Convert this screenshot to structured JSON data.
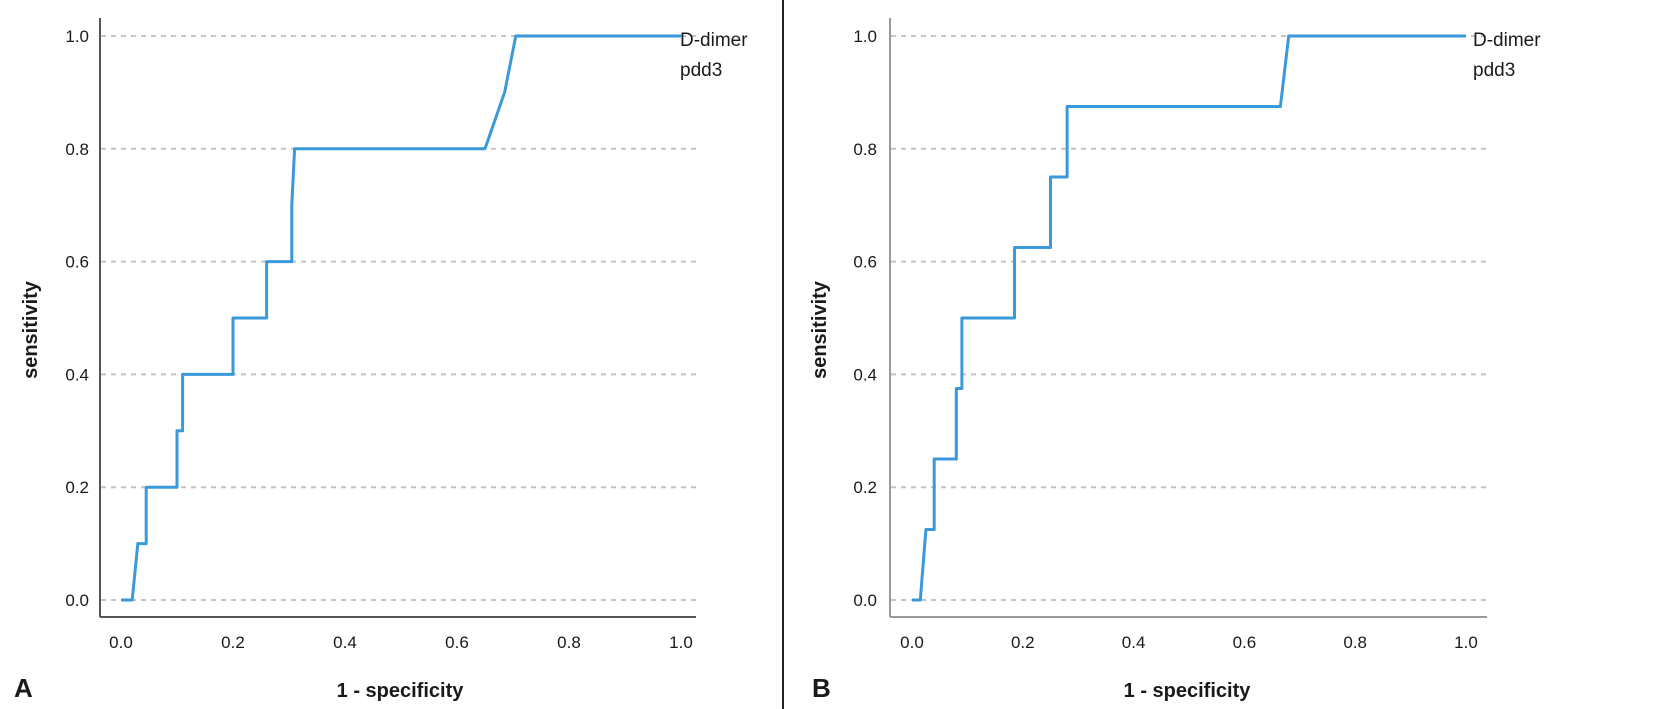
{
  "chart_data": [
    {
      "panel_label": "A",
      "type": "line",
      "xlabel": "1 - specificity",
      "ylabel": "sensitivity",
      "xlim": [
        0,
        1
      ],
      "ylim": [
        0,
        1
      ],
      "x_ticks": [
        "0.0",
        "0.2",
        "0.4",
        "0.6",
        "0.8",
        "1.0"
      ],
      "y_ticks": [
        "0.0",
        "0.2",
        "0.4",
        "0.6",
        "0.8",
        "1.0"
      ],
      "grid": "horizontal dashed",
      "legend": [
        "D-dimer",
        "pdd3"
      ],
      "legend_position": "top-right",
      "series": [
        {
          "color": "#3a9ad9",
          "x": [
            0.0,
            0.02,
            0.03,
            0.03,
            0.045,
            0.045,
            0.1,
            0.1,
            0.11,
            0.11,
            0.2,
            0.2,
            0.26,
            0.26,
            0.305,
            0.305,
            0.31,
            0.65,
            0.685,
            0.705,
            1.0
          ],
          "y": [
            0.0,
            0.0,
            0.1,
            0.1,
            0.1,
            0.2,
            0.2,
            0.3,
            0.3,
            0.4,
            0.4,
            0.5,
            0.5,
            0.6,
            0.6,
            0.7,
            0.8,
            0.8,
            0.9,
            1.0,
            1.0
          ]
        }
      ]
    },
    {
      "panel_label": "B",
      "type": "line",
      "xlabel": "1 - specificity",
      "ylabel": "sensitivity",
      "xlim": [
        0,
        1
      ],
      "ylim": [
        0,
        1
      ],
      "x_ticks": [
        "0.0",
        "0.2",
        "0.4",
        "0.6",
        "0.8",
        "1.0"
      ],
      "y_ticks": [
        "0.0",
        "0.2",
        "0.4",
        "0.6",
        "0.8",
        "1.0"
      ],
      "grid": "horizontal dashed",
      "legend": [
        "D-dimer",
        "pdd3"
      ],
      "legend_position": "top-right",
      "series": [
        {
          "color": "#3a9ad9",
          "x": [
            0.0,
            0.015,
            0.025,
            0.04,
            0.04,
            0.08,
            0.08,
            0.09,
            0.09,
            0.185,
            0.185,
            0.25,
            0.25,
            0.28,
            0.28,
            0.665,
            0.68,
            1.0
          ],
          "y": [
            0.0,
            0.0,
            0.125,
            0.125,
            0.25,
            0.25,
            0.375,
            0.375,
            0.5,
            0.5,
            0.625,
            0.625,
            0.75,
            0.75,
            0.875,
            0.875,
            1.0,
            1.0
          ]
        }
      ]
    }
  ]
}
